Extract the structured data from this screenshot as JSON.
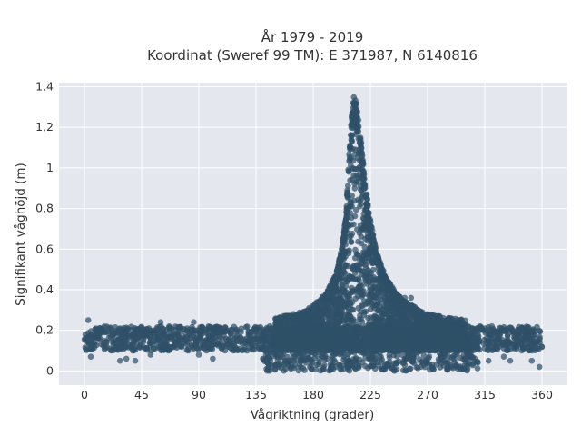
{
  "chart_data": {
    "type": "scatter",
    "title": "År 1979 - 2019",
    "subtitle": "Koordinat (Sweref 99 TM): E 371987, N 6140816",
    "xlabel": "Vågriktning (grader)",
    "ylabel": "Signifikant våghöjd (m)",
    "xlim": [
      -20,
      380
    ],
    "ylim": [
      -0.07,
      1.42
    ],
    "x_ticks": [
      0,
      45,
      90,
      135,
      180,
      225,
      270,
      315,
      360
    ],
    "x_tick_labels": [
      "0",
      "45",
      "90",
      "135",
      "180",
      "225",
      "270",
      "315",
      "360"
    ],
    "y_ticks": [
      0,
      0.2,
      0.4,
      0.6,
      0.8,
      1.0,
      1.2,
      1.4
    ],
    "y_tick_labels": [
      "0",
      "0,2",
      "0,4",
      "0,6",
      "0,8",
      "1",
      "1,2",
      "1,4"
    ],
    "grid": true,
    "marker_color": "#2f5068",
    "plot_background": "#e5e7ef",
    "gridline_color": "#ffffff",
    "series": [
      {
        "name": "",
        "band_baseline": {
          "x_range": [
            0,
            360
          ],
          "y_range": [
            0.1,
            0.22
          ]
        },
        "peak_envelope": [
          {
            "x": 150,
            "y": 0.26
          },
          {
            "x": 175,
            "y": 0.3
          },
          {
            "x": 190,
            "y": 0.38
          },
          {
            "x": 198,
            "y": 0.48
          },
          {
            "x": 203,
            "y": 0.62
          },
          {
            "x": 206,
            "y": 0.8
          },
          {
            "x": 208,
            "y": 1.05
          },
          {
            "x": 210,
            "y": 1.25
          },
          {
            "x": 212,
            "y": 1.36
          },
          {
            "x": 214,
            "y": 1.32
          },
          {
            "x": 217,
            "y": 1.18
          },
          {
            "x": 220,
            "y": 0.98
          },
          {
            "x": 224,
            "y": 0.78
          },
          {
            "x": 230,
            "y": 0.58
          },
          {
            "x": 238,
            "y": 0.45
          },
          {
            "x": 250,
            "y": 0.35
          },
          {
            "x": 270,
            "y": 0.28
          },
          {
            "x": 300,
            "y": 0.25
          }
        ],
        "outliers": [
          {
            "x": 5,
            "y": 0.07
          },
          {
            "x": 28,
            "y": 0.05
          },
          {
            "x": 33,
            "y": 0.06
          },
          {
            "x": 40,
            "y": 0.05
          },
          {
            "x": 52,
            "y": 0.08
          },
          {
            "x": 66,
            "y": 0.1
          },
          {
            "x": 90,
            "y": 0.08
          },
          {
            "x": 96,
            "y": 0.1
          },
          {
            "x": 101,
            "y": 0.06
          },
          {
            "x": 128,
            "y": 0.1
          },
          {
            "x": 150,
            "y": 0.03
          },
          {
            "x": 252,
            "y": 0.36
          },
          {
            "x": 257,
            "y": 0.36
          },
          {
            "x": 270,
            "y": 0.28
          },
          {
            "x": 300,
            "y": 0.06
          },
          {
            "x": 318,
            "y": 0.05
          },
          {
            "x": 330,
            "y": 0.07
          },
          {
            "x": 335,
            "y": 0.05
          },
          {
            "x": 352,
            "y": 0.05
          },
          {
            "x": 358,
            "y": 0.02
          },
          {
            "x": 3,
            "y": 0.25
          },
          {
            "x": 60,
            "y": 0.24
          },
          {
            "x": 86,
            "y": 0.24
          }
        ]
      }
    ]
  }
}
